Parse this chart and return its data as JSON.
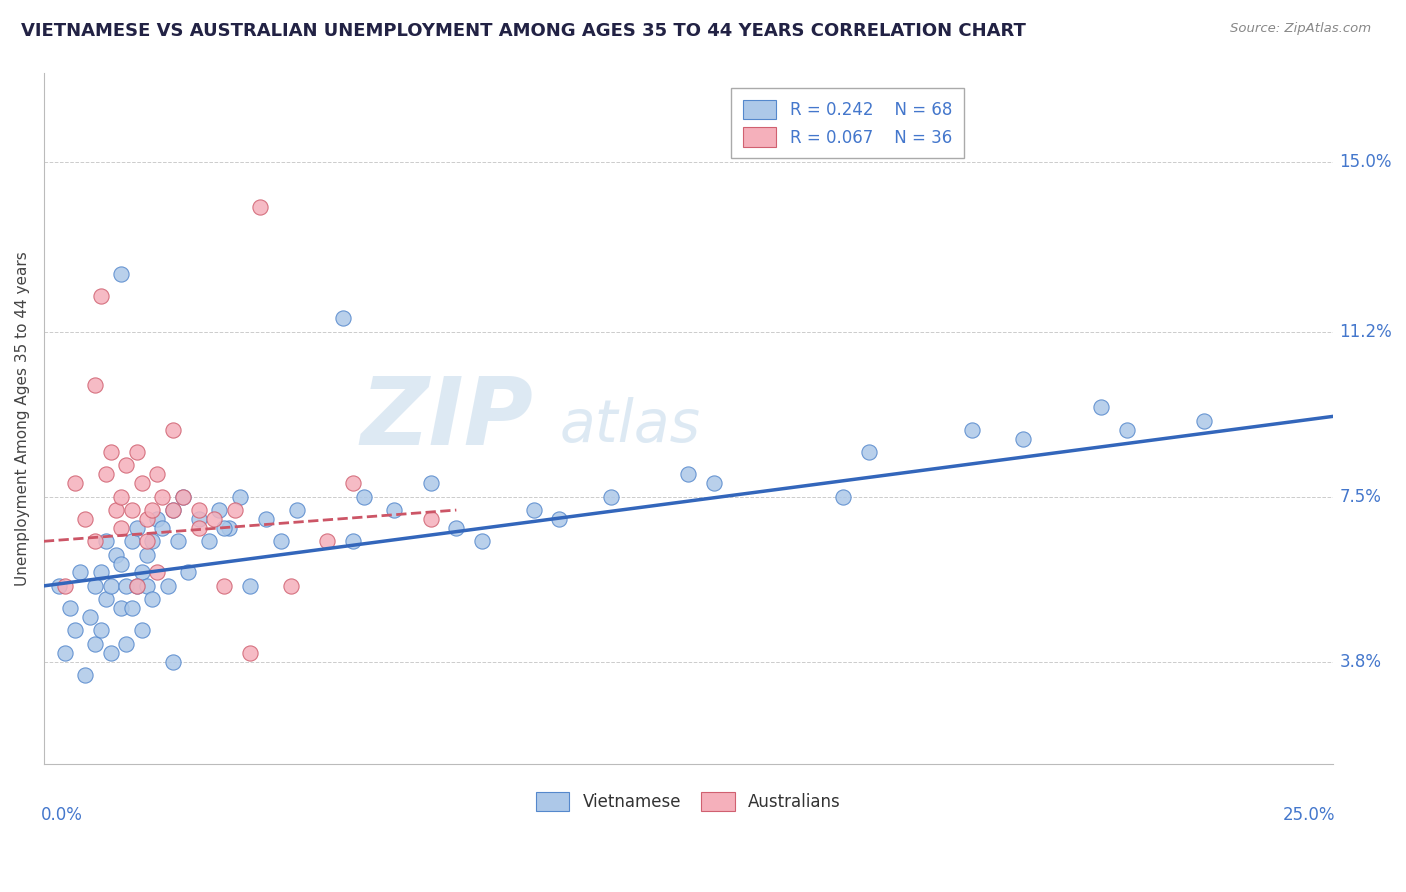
{
  "title": "VIETNAMESE VS AUSTRALIAN UNEMPLOYMENT AMONG AGES 35 TO 44 YEARS CORRELATION CHART",
  "source": "Source: ZipAtlas.com",
  "ylabel": "Unemployment Among Ages 35 to 44 years",
  "ytick_labels": [
    "3.8%",
    "7.5%",
    "11.2%",
    "15.0%"
  ],
  "ytick_values": [
    3.8,
    7.5,
    11.2,
    15.0
  ],
  "xlim": [
    0.0,
    25.0
  ],
  "ylim": [
    1.5,
    17.0
  ],
  "legend_r1": "R = 0.242",
  "legend_n1": "N = 68",
  "legend_r2": "R = 0.067",
  "legend_n2": "N = 36",
  "viet_color": "#adc8e8",
  "aus_color": "#f5b0bb",
  "viet_edge_color": "#5588cc",
  "aus_edge_color": "#d06070",
  "viet_line_color": "#3366bb",
  "aus_line_color": "#cc5566",
  "label_color": "#4477cc",
  "title_color": "#222244",
  "background_color": "#ffffff",
  "viet_x": [
    0.3,
    0.4,
    0.5,
    0.6,
    0.7,
    0.8,
    0.9,
    1.0,
    1.0,
    1.1,
    1.1,
    1.2,
    1.2,
    1.3,
    1.3,
    1.4,
    1.5,
    1.5,
    1.6,
    1.6,
    1.7,
    1.7,
    1.8,
    1.8,
    1.9,
    1.9,
    2.0,
    2.0,
    2.1,
    2.1,
    2.2,
    2.3,
    2.4,
    2.5,
    2.6,
    2.7,
    2.8,
    3.0,
    3.2,
    3.4,
    3.6,
    3.8,
    4.0,
    4.3,
    4.6,
    4.9,
    5.8,
    6.2,
    6.8,
    7.5,
    8.5,
    9.5,
    11.0,
    13.0,
    16.0,
    19.0,
    21.0,
    22.5,
    10.0,
    12.5,
    15.5,
    18.0,
    20.5,
    8.0,
    6.0,
    3.5,
    2.5,
    1.5
  ],
  "viet_y": [
    5.5,
    4.0,
    5.0,
    4.5,
    5.8,
    3.5,
    4.8,
    4.2,
    5.5,
    5.8,
    4.5,
    5.2,
    6.5,
    5.5,
    4.0,
    6.2,
    6.0,
    5.0,
    5.5,
    4.2,
    6.5,
    5.0,
    6.8,
    5.5,
    5.8,
    4.5,
    6.2,
    5.5,
    6.5,
    5.2,
    7.0,
    6.8,
    5.5,
    7.2,
    6.5,
    7.5,
    5.8,
    7.0,
    6.5,
    7.2,
    6.8,
    7.5,
    5.5,
    7.0,
    6.5,
    7.2,
    11.5,
    7.5,
    7.2,
    7.8,
    6.5,
    7.2,
    7.5,
    7.8,
    8.5,
    8.8,
    9.0,
    9.2,
    7.0,
    8.0,
    7.5,
    9.0,
    9.5,
    6.8,
    6.5,
    6.8,
    3.8,
    12.5
  ],
  "aus_x": [
    0.4,
    0.6,
    0.8,
    1.0,
    1.1,
    1.2,
    1.3,
    1.4,
    1.5,
    1.6,
    1.7,
    1.8,
    1.9,
    2.0,
    2.1,
    2.2,
    2.3,
    2.5,
    2.7,
    3.0,
    3.3,
    3.7,
    4.2,
    1.0,
    1.5,
    2.0,
    2.5,
    3.0,
    4.0,
    5.5,
    7.5,
    1.8,
    2.2,
    3.5,
    4.8,
    6.0
  ],
  "aus_y": [
    5.5,
    7.8,
    7.0,
    10.0,
    12.0,
    8.0,
    8.5,
    7.2,
    7.5,
    8.2,
    7.2,
    8.5,
    7.8,
    7.0,
    7.2,
    8.0,
    7.5,
    9.0,
    7.5,
    7.2,
    7.0,
    7.2,
    14.0,
    6.5,
    6.8,
    6.5,
    7.2,
    6.8,
    4.0,
    6.5,
    7.0,
    5.5,
    5.8,
    5.5,
    5.5,
    7.8
  ],
  "viet_trend_x0": 0.0,
  "viet_trend_y0": 5.5,
  "viet_trend_x1": 25.0,
  "viet_trend_y1": 9.3,
  "aus_trend_x0": 0.0,
  "aus_trend_y0": 6.5,
  "aus_trend_x1": 8.0,
  "aus_trend_y1": 7.2
}
